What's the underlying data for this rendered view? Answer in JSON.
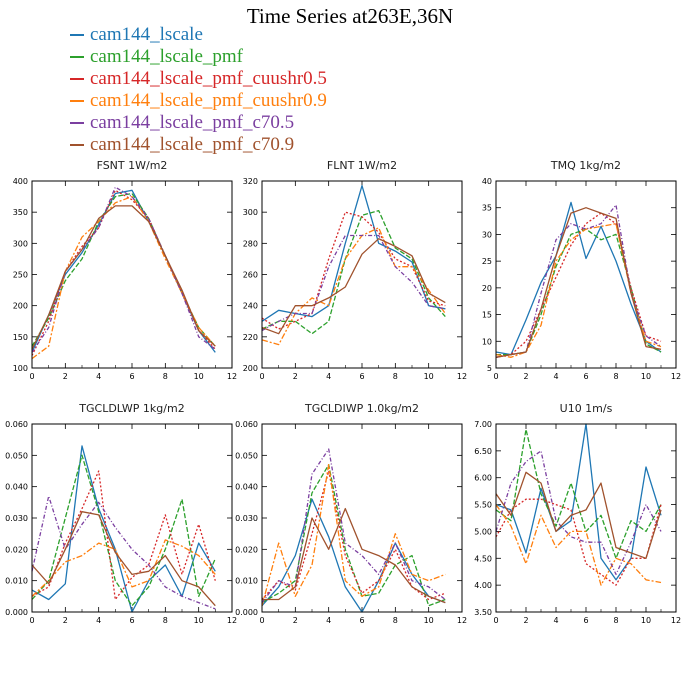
{
  "title": "Time Series at263E,36N",
  "legend": [
    {
      "label": "cam144_lscale",
      "color": "#1f77b4",
      "dash": ""
    },
    {
      "label": "cam144_lscale_pmf",
      "color": "#2ca02c",
      "dash": "5,2"
    },
    {
      "label": "cam144_lscale_pmf_cuushr0.5",
      "color": "#d62728",
      "dash": "2,2"
    },
    {
      "label": "cam144_lscale_pmf_cuushr0.9",
      "color": "#ff7f0e",
      "dash": "6,2,2,2"
    },
    {
      "label": "cam144_lscale_pmf_c70.5",
      "color": "#7b3fa0",
      "dash": "4,2,1,2"
    },
    {
      "label": "cam144_lscale_pmf_c70.9",
      "color": "#a0522d",
      "dash": ""
    }
  ],
  "chart_data": [
    {
      "type": "line",
      "title": "FSNT   1W/m2",
      "x": [
        0,
        1,
        2,
        3,
        4,
        5,
        6,
        7,
        8,
        9,
        10,
        11
      ],
      "xlim": [
        0,
        12
      ],
      "xticks": [
        0,
        2,
        4,
        6,
        8,
        10,
        12
      ],
      "xtick_labels": [
        "0",
        "2",
        "4",
        "6",
        "8",
        "10",
        "12"
      ],
      "ylim": [
        100,
        400
      ],
      "yticks": [
        100,
        150,
        200,
        250,
        300,
        350,
        400
      ],
      "ytick_labels": [
        "100",
        "150",
        "200",
        "250",
        "300",
        "350",
        "400"
      ],
      "series": [
        {
          "name": "cam144_lscale",
          "values": [
            125,
            185,
            250,
            285,
            330,
            380,
            385,
            335,
            280,
            220,
            160,
            125
          ]
        },
        {
          "name": "cam144_lscale_pmf",
          "values": [
            135,
            180,
            240,
            275,
            335,
            375,
            380,
            340,
            280,
            220,
            165,
            135
          ]
        },
        {
          "name": "cam144_lscale_pmf_cuushr0.5",
          "values": [
            120,
            175,
            255,
            295,
            325,
            385,
            370,
            340,
            280,
            220,
            160,
            130
          ]
        },
        {
          "name": "cam144_lscale_pmf_cuushr0.9",
          "values": [
            115,
            135,
            255,
            310,
            335,
            365,
            375,
            335,
            275,
            220,
            165,
            135
          ]
        },
        {
          "name": "cam144_lscale_pmf_c70.5",
          "values": [
            125,
            165,
            255,
            290,
            325,
            390,
            375,
            340,
            280,
            220,
            150,
            130
          ]
        },
        {
          "name": "cam144_lscale_pmf_c70.9",
          "values": [
            130,
            185,
            255,
            290,
            340,
            360,
            360,
            335,
            280,
            225,
            160,
            135
          ]
        }
      ]
    },
    {
      "type": "line",
      "title": "FLNT   1W/m2",
      "x": [
        0,
        1,
        2,
        3,
        4,
        5,
        6,
        7,
        8,
        9,
        10,
        11
      ],
      "xlim": [
        0,
        12
      ],
      "xticks": [
        0,
        2,
        4,
        6,
        8,
        10,
        12
      ],
      "xtick_labels": [
        "0",
        "2",
        "4",
        "6",
        "8",
        "10",
        "12"
      ],
      "ylim": [
        200,
        320
      ],
      "yticks": [
        200,
        220,
        240,
        260,
        280,
        300,
        320
      ],
      "ytick_labels": [
        "200",
        "220",
        "240",
        "260",
        "280",
        "300",
        "320"
      ],
      "series": [
        {
          "name": "cam144_lscale",
          "values": [
            230,
            237,
            235,
            233,
            240,
            280,
            317,
            280,
            275,
            268,
            240,
            238
          ]
        },
        {
          "name": "cam144_lscale_pmf",
          "values": [
            225,
            230,
            230,
            222,
            230,
            270,
            298,
            301,
            277,
            270,
            245,
            233
          ]
        },
        {
          "name": "cam144_lscale_pmf_cuushr0.5",
          "values": [
            232,
            225,
            230,
            235,
            270,
            300,
            297,
            287,
            270,
            265,
            243,
            240
          ]
        },
        {
          "name": "cam144_lscale_pmf_cuushr0.9",
          "values": [
            218,
            215,
            235,
            245,
            240,
            270,
            285,
            290,
            265,
            265,
            250,
            235
          ]
        },
        {
          "name": "cam144_lscale_pmf_c70.5",
          "values": [
            224,
            230,
            235,
            235,
            265,
            285,
            285,
            285,
            265,
            255,
            240,
            238
          ]
        },
        {
          "name": "cam144_lscale_pmf_c70.9",
          "values": [
            226,
            222,
            240,
            240,
            245,
            252,
            273,
            283,
            278,
            272,
            248,
            242
          ]
        }
      ]
    },
    {
      "type": "line",
      "title": "TMQ   1kg/m2",
      "x": [
        0,
        1,
        2,
        3,
        4,
        5,
        6,
        7,
        8,
        9,
        10,
        11
      ],
      "xlim": [
        0,
        12
      ],
      "xticks": [
        0,
        2,
        4,
        6,
        8,
        10,
        12
      ],
      "xtick_labels": [
        "0",
        "2",
        "4",
        "6",
        "8",
        "10",
        "12"
      ],
      "ylim": [
        5,
        40
      ],
      "yticks": [
        5,
        10,
        15,
        20,
        25,
        30,
        35,
        40
      ],
      "ytick_labels": [
        "5",
        "10",
        "15",
        "20",
        "25",
        "30",
        "35",
        "40"
      ],
      "series": [
        {
          "name": "cam144_lscale",
          "values": [
            8,
            7.5,
            14,
            21,
            26,
            36,
            25.5,
            31.5,
            25,
            17,
            10,
            8
          ]
        },
        {
          "name": "cam144_lscale_pmf",
          "values": [
            7.5,
            7.5,
            8,
            15,
            24,
            30,
            31,
            29,
            30,
            20,
            9.5,
            8
          ]
        },
        {
          "name": "cam144_lscale_pmf_cuushr0.5",
          "values": [
            7,
            7.5,
            10,
            16,
            22,
            28,
            32,
            34,
            32,
            20,
            11,
            10
          ]
        },
        {
          "name": "cam144_lscale_pmf_cuushr0.9",
          "values": [
            7.5,
            7,
            8,
            13,
            25,
            29,
            31,
            31.5,
            32,
            19,
            10,
            9
          ]
        },
        {
          "name": "cam144_lscale_pmf_c70.5",
          "values": [
            7,
            7.5,
            8,
            19,
            29,
            32,
            31,
            32,
            35.5,
            19,
            11,
            9
          ]
        },
        {
          "name": "cam144_lscale_pmf_c70.9",
          "values": [
            7,
            7.5,
            8,
            16,
            26,
            34,
            35,
            34,
            33,
            19,
            9,
            8.5
          ]
        }
      ]
    },
    {
      "type": "line",
      "title": "TGCLDLWP   1kg/m2",
      "x": [
        0,
        1,
        2,
        3,
        4,
        5,
        6,
        7,
        8,
        9,
        10,
        11
      ],
      "xlim": [
        0,
        12
      ],
      "xticks": [
        0,
        2,
        4,
        6,
        8,
        10,
        12
      ],
      "xtick_labels": [
        "0",
        "2",
        "4",
        "6",
        "8",
        "10",
        "12"
      ],
      "ylim": [
        0,
        0.06
      ],
      "yticks": [
        0,
        0.01,
        0.02,
        0.03,
        0.04,
        0.05,
        0.06
      ],
      "ytick_labels": [
        "0.000",
        "0.010",
        "0.020",
        "0.030",
        "0.040",
        "0.050",
        "0.060"
      ],
      "series": [
        {
          "name": "cam144_lscale",
          "values": [
            0.007,
            0.004,
            0.009,
            0.053,
            0.033,
            0.02,
            0.0,
            0.01,
            0.015,
            0.005,
            0.022,
            0.013
          ]
        },
        {
          "name": "cam144_lscale_pmf",
          "values": [
            0.004,
            0.01,
            0.03,
            0.05,
            0.032,
            0.01,
            0.002,
            0.008,
            0.02,
            0.036,
            0.005,
            0.017
          ]
        },
        {
          "name": "cam144_lscale_pmf_cuushr0.5",
          "values": [
            0.005,
            0.008,
            0.022,
            0.033,
            0.045,
            0.004,
            0.011,
            0.015,
            0.031,
            0.012,
            0.028,
            0.01
          ]
        },
        {
          "name": "cam144_lscale_pmf_cuushr0.9",
          "values": [
            0.005,
            0.01,
            0.016,
            0.018,
            0.022,
            0.02,
            0.008,
            0.01,
            0.023,
            0.021,
            0.018,
            0.012
          ]
        },
        {
          "name": "cam144_lscale_pmf_c70.5",
          "values": [
            0.013,
            0.037,
            0.02,
            0.028,
            0.035,
            0.027,
            0.02,
            0.015,
            0.008,
            0.005,
            0.003,
            0.001
          ]
        },
        {
          "name": "cam144_lscale_pmf_c70.9",
          "values": [
            0.015,
            0.009,
            0.02,
            0.032,
            0.031,
            0.019,
            0.012,
            0.013,
            0.018,
            0.01,
            0.008,
            0.002
          ]
        }
      ]
    },
    {
      "type": "line",
      "title": "TGCLDIWP   1.0kg/m2",
      "x": [
        0,
        1,
        2,
        3,
        4,
        5,
        6,
        7,
        8,
        9,
        10,
        11
      ],
      "xlim": [
        0,
        12
      ],
      "xticks": [
        0,
        2,
        4,
        6,
        8,
        10,
        12
      ],
      "xtick_labels": [
        "0",
        "2",
        "4",
        "6",
        "8",
        "10",
        "12"
      ],
      "ylim": [
        0,
        0.06
      ],
      "yticks": [
        0,
        0.01,
        0.02,
        0.03,
        0.04,
        0.05,
        0.06
      ],
      "ytick_labels": [
        "0.000",
        "0.010",
        "0.020",
        "0.030",
        "0.040",
        "0.050",
        "0.060"
      ],
      "series": [
        {
          "name": "cam144_lscale",
          "values": [
            0.002,
            0.008,
            0.018,
            0.036,
            0.024,
            0.008,
            0.0,
            0.01,
            0.022,
            0.012,
            0.005,
            0.003
          ]
        },
        {
          "name": "cam144_lscale_pmf",
          "values": [
            0.003,
            0.006,
            0.01,
            0.038,
            0.047,
            0.02,
            0.005,
            0.006,
            0.015,
            0.018,
            0.002,
            0.004
          ]
        },
        {
          "name": "cam144_lscale_pmf_cuushr0.5",
          "values": [
            0.004,
            0.01,
            0.007,
            0.025,
            0.045,
            0.018,
            0.006,
            0.01,
            0.02,
            0.008,
            0.004,
            0.006
          ]
        },
        {
          "name": "cam144_lscale_pmf_cuushr0.9",
          "values": [
            0.002,
            0.022,
            0.005,
            0.015,
            0.047,
            0.01,
            0.005,
            0.008,
            0.025,
            0.012,
            0.01,
            0.012
          ]
        },
        {
          "name": "cam144_lscale_pmf_c70.5",
          "values": [
            0.003,
            0.01,
            0.008,
            0.044,
            0.052,
            0.022,
            0.018,
            0.012,
            0.022,
            0.01,
            0.008,
            0.004
          ]
        },
        {
          "name": "cam144_lscale_pmf_c70.9",
          "values": [
            0.004,
            0.004,
            0.008,
            0.03,
            0.02,
            0.033,
            0.02,
            0.018,
            0.015,
            0.008,
            0.005,
            0.003
          ]
        }
      ]
    },
    {
      "type": "line",
      "title": "U10   1m/s",
      "x": [
        0,
        1,
        2,
        3,
        4,
        5,
        6,
        7,
        8,
        9,
        10,
        11
      ],
      "xlim": [
        0,
        12
      ],
      "xticks": [
        0,
        2,
        4,
        6,
        8,
        10,
        12
      ],
      "xtick_labels": [
        "0",
        "2",
        "4",
        "6",
        "8",
        "10",
        "12"
      ],
      "ylim": [
        3.5,
        7.0
      ],
      "yticks": [
        3.5,
        4.0,
        4.5,
        5.0,
        5.5,
        6.0,
        6.5,
        7.0
      ],
      "ytick_labels": [
        "3.50",
        "4.00",
        "4.50",
        "5.00",
        "5.50",
        "6.00",
        "6.50",
        "7.00"
      ],
      "series": [
        {
          "name": "cam144_lscale",
          "values": [
            5.5,
            5.4,
            4.6,
            5.8,
            5.0,
            5.2,
            7.0,
            4.5,
            4.1,
            4.5,
            6.2,
            5.3
          ]
        },
        {
          "name": "cam144_lscale_pmf",
          "values": [
            5.4,
            5.2,
            6.9,
            5.7,
            5.1,
            5.9,
            5.0,
            5.3,
            4.5,
            5.2,
            5.0,
            5.5
          ]
        },
        {
          "name": "cam144_lscale_pmf_cuushr0.5",
          "values": [
            4.9,
            5.4,
            5.6,
            5.6,
            5.5,
            5.4,
            4.4,
            4.2,
            4.0,
            4.5,
            4.5,
            5.5
          ]
        },
        {
          "name": "cam144_lscale_pmf_cuushr0.9",
          "values": [
            5.5,
            5.1,
            4.4,
            5.3,
            4.7,
            5.0,
            5.0,
            4.0,
            4.5,
            4.4,
            4.1,
            4.05
          ]
        },
        {
          "name": "cam144_lscale_pmf_c70.5",
          "values": [
            5.0,
            5.9,
            6.3,
            6.5,
            5.2,
            4.9,
            4.8,
            4.8,
            4.2,
            4.8,
            5.5,
            5.0
          ]
        },
        {
          "name": "cam144_lscale_pmf_c70.9",
          "values": [
            5.7,
            5.3,
            6.1,
            5.9,
            5.0,
            5.3,
            5.4,
            5.9,
            4.7,
            4.6,
            4.5,
            5.4
          ]
        }
      ]
    }
  ]
}
